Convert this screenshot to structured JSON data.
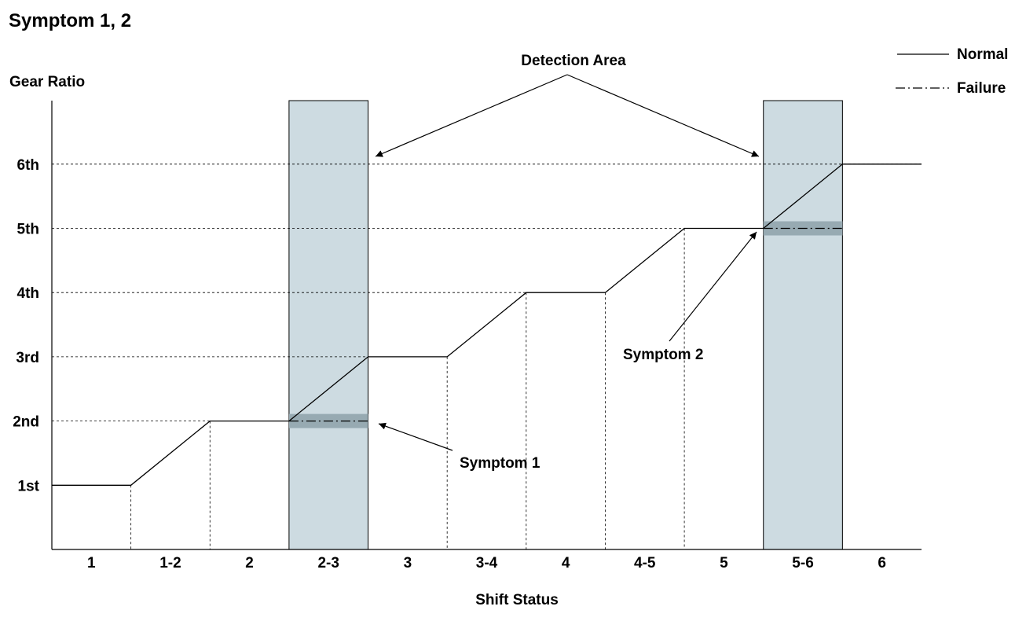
{
  "title": "Symptom 1, 2",
  "y_axis_label": "Gear Ratio",
  "x_axis_label": "Shift Status",
  "legend": [
    {
      "label": "Normal",
      "style": "solid"
    },
    {
      "label": "Failure",
      "style": "dash-dot"
    }
  ],
  "annotations": {
    "detection_area": "Detection Area",
    "symptom_1": "Symptom 1",
    "symptom_2": "Symptom 2"
  },
  "colors": {
    "detection_fill": "#cddbe1",
    "failure_band": "#97aab2",
    "line": "#000000"
  },
  "chart_data": {
    "type": "line",
    "categories": [
      "1",
      "1-2",
      "2",
      "2-3",
      "3",
      "3-4",
      "4",
      "4-5",
      "5",
      "5-6",
      "6"
    ],
    "y_ticks": [
      "1st",
      "2nd",
      "3rd",
      "4th",
      "5th",
      "6th"
    ],
    "xlabel": "Shift Status",
    "ylabel": "Gear Ratio",
    "series": [
      {
        "name": "Normal",
        "style": "solid",
        "values": [
          1,
          1.5,
          2,
          2.5,
          3,
          3.5,
          4,
          4.5,
          5,
          5.5,
          6
        ]
      },
      {
        "name": "Failure",
        "style": "dash-dot",
        "segments": [
          {
            "category": "2-3",
            "value": 2
          },
          {
            "category": "5-6",
            "value": 5
          }
        ]
      }
    ],
    "detection_areas": [
      "2-3",
      "5-6"
    ],
    "legend_position": "top-right",
    "grid": "dashed horizontal at gear levels"
  }
}
